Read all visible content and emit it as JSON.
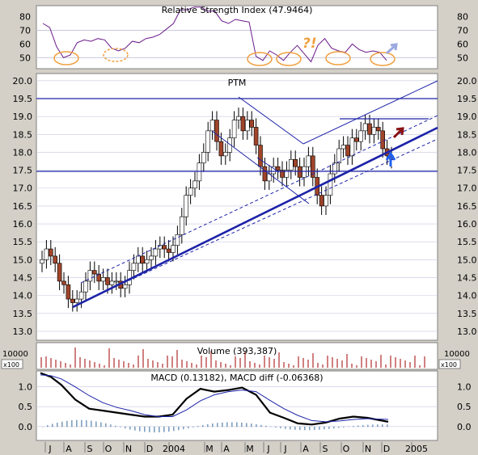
{
  "chart_data": [
    {
      "type": "line",
      "title": "Relative Strength Index (47.9464)",
      "yticks": [
        50,
        60,
        70,
        80
      ],
      "ylim": [
        42,
        88
      ],
      "reference_lines": [
        50,
        70
      ],
      "series": [
        {
          "x": [
            0,
            0.02,
            0.04,
            0.06,
            0.08,
            0.1,
            0.12,
            0.14,
            0.16,
            0.18,
            0.2,
            0.22,
            0.24,
            0.26,
            0.28,
            0.3,
            0.32,
            0.34,
            0.36,
            0.38,
            0.4,
            0.42,
            0.44,
            0.46,
            0.48,
            0.5,
            0.52,
            0.54,
            0.56,
            0.58,
            0.6,
            0.62,
            0.64,
            0.66,
            0.68,
            0.7,
            0.72,
            0.74,
            0.76,
            0.78,
            0.8,
            0.82,
            0.84,
            0.86,
            0.88,
            0.9,
            0.92,
            0.94,
            0.96,
            0.98,
            1.0
          ],
          "values": [
            75,
            72,
            58,
            50,
            52,
            61,
            63,
            62,
            64,
            63,
            57,
            55,
            57,
            62,
            61,
            64,
            65,
            67,
            71,
            75,
            85,
            85,
            87,
            87,
            84,
            84,
            77,
            75,
            78,
            77,
            76,
            51,
            48,
            55,
            52,
            48,
            54,
            59,
            53,
            47,
            59,
            64,
            57,
            55,
            54,
            60,
            56,
            54,
            55,
            54,
            48
          ]
        }
      ],
      "annotations": [
        "?!"
      ]
    },
    {
      "type": "candlestick",
      "title": "PTM",
      "yticks": [
        13.0,
        13.5,
        14.0,
        14.5,
        15.0,
        15.5,
        16.0,
        16.5,
        17.0,
        17.5,
        18.0,
        18.5,
        19.0,
        19.5,
        20.0
      ],
      "ylim": [
        12.75,
        20.2
      ],
      "close": [
        15.0,
        15.3,
        15.1,
        14.9,
        14.4,
        14.3,
        13.9,
        13.8,
        13.9,
        14.1,
        14.4,
        14.7,
        14.6,
        14.4,
        14.5,
        14.3,
        14.4,
        14.4,
        14.2,
        14.3,
        14.7,
        14.9,
        15.1,
        14.9,
        15.0,
        15.1,
        15.3,
        15.4,
        15.3,
        15.2,
        15.4,
        15.7,
        16.2,
        16.8,
        17.0,
        17.2,
        17.7,
        18.0,
        18.6,
        18.9,
        18.3,
        17.9,
        18.0,
        18.4,
        18.9,
        19.0,
        18.6,
        18.9,
        18.7,
        18.2,
        17.6,
        17.2,
        17.4,
        17.6,
        17.5,
        17.3,
        17.5,
        17.8,
        17.6,
        17.3,
        17.6,
        17.9,
        17.3,
        16.8,
        16.5,
        16.8,
        17.4,
        17.7,
        18.1,
        18.2,
        17.9,
        18.4,
        18.3,
        18.6,
        18.8,
        18.5,
        18.7,
        18.6,
        18.1,
        17.9,
        17.8
      ]
    },
    {
      "type": "bar",
      "title": "Volume (393,387)",
      "ytick": "10000",
      "unit": "x100"
    },
    {
      "type": "line",
      "title": "MACD (0.13182), MACD diff (-0.06368)",
      "yticks": [
        0.0,
        0.5,
        1.0
      ],
      "ylim": [
        -0.35,
        1.4
      ],
      "series": [
        {
          "x": [
            0,
            0.03,
            0.06,
            0.1,
            0.14,
            0.18,
            0.22,
            0.26,
            0.3,
            0.34,
            0.38,
            0.42,
            0.46,
            0.5,
            0.54,
            0.58,
            0.62,
            0.66,
            0.7,
            0.74,
            0.78,
            0.82,
            0.86,
            0.9,
            0.94,
            1.0
          ],
          "values": [
            1.35,
            1.25,
            1.05,
            0.68,
            0.45,
            0.4,
            0.35,
            0.3,
            0.25,
            0.25,
            0.3,
            0.7,
            0.95,
            0.88,
            0.92,
            0.98,
            0.8,
            0.35,
            0.22,
            0.08,
            0.05,
            0.1,
            0.2,
            0.25,
            0.22,
            0.12
          ]
        },
        {
          "x": [
            0,
            0.03,
            0.06,
            0.1,
            0.14,
            0.18,
            0.22,
            0.26,
            0.3,
            0.34,
            0.38,
            0.42,
            0.46,
            0.5,
            0.54,
            0.58,
            0.62,
            0.66,
            0.7,
            0.74,
            0.78,
            0.82,
            0.86,
            0.9,
            0.94,
            1.0
          ],
          "values": [
            1.3,
            1.28,
            1.2,
            1.0,
            0.78,
            0.6,
            0.48,
            0.4,
            0.3,
            0.25,
            0.25,
            0.42,
            0.65,
            0.8,
            0.88,
            0.92,
            0.88,
            0.66,
            0.45,
            0.28,
            0.15,
            0.12,
            0.14,
            0.18,
            0.2,
            0.18
          ]
        }
      ]
    }
  ],
  "x_axis": {
    "labels": [
      "J",
      "A",
      "S",
      "O",
      "N",
      "D",
      "2004",
      "M",
      "A",
      "M",
      "J",
      "J",
      "A",
      "S",
      "O",
      "N",
      "D",
      "2005"
    ]
  },
  "colors": {
    "grid": "#c8c8e0",
    "navy": "#1d23a8",
    "rsi": "#6a1a8a",
    "bear": "#a0442a",
    "bull": "#ffffff",
    "ring": "#f0a040",
    "maroon": "#8a1010",
    "blue_arrow": "#2060f0",
    "volume": "#d08080",
    "macd_hist": "#80a0c0"
  }
}
